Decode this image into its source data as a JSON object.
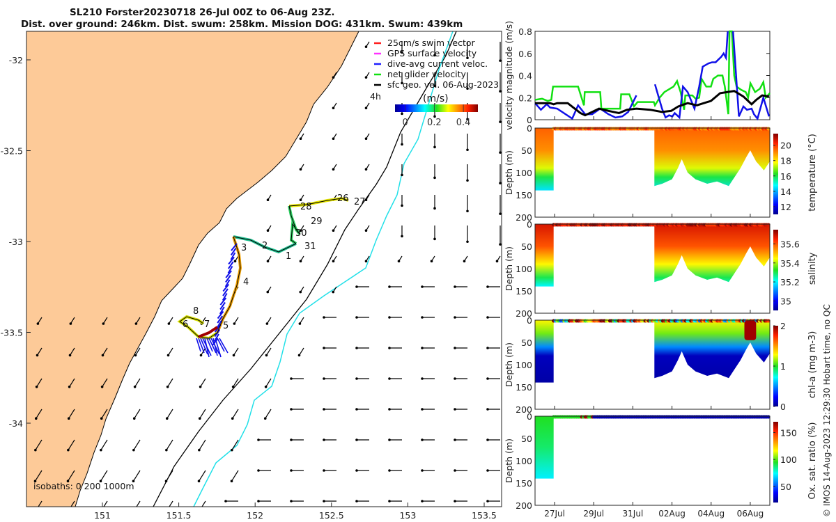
{
  "title": {
    "line1": "SL210 Forster20230718 26-Jul 00Z to 06-Aug 23Z.",
    "line2": "Dist. over ground: 246km. Dist. swum: 258km. Mission DOG: 431km. Swum: 439km"
  },
  "credit": "© IMOS 14-Aug-2023 12:29:30 Hobart time, no QC",
  "colors": {
    "land": "#fdca98",
    "isobath_200": "#000000",
    "isobath_1000": "#22e0e8",
    "green": "#11e011",
    "blue": "#1010e8",
    "black": "#000000"
  },
  "map": {
    "legend": [
      {
        "label": "25cm/s swim vector",
        "color": "#ff2020"
      },
      {
        "label": "GPS surface velocity",
        "color": "#ff30ff"
      },
      {
        "label": "dive-avg current veloc.",
        "color": "#2020ff"
      },
      {
        "label": "net glider velocity",
        "color": "#11e011"
      },
      {
        "label": "sfc geo. vel. 06-Aug-2023",
        "color": "#000000"
      }
    ],
    "interval_label": "4h",
    "colorbar": {
      "unit": "(m/s)",
      "ticks": [
        "0",
        "0.2",
        "0.4"
      ],
      "range": [
        -0.07,
        0.5
      ]
    },
    "lon_ticks": [
      "151",
      "151.5",
      "152",
      "152.5",
      "153",
      "153.5"
    ],
    "lat_ticks": [
      "-32",
      "-32.5",
      "-33",
      "-33.5",
      "-34"
    ],
    "isobaths_label": "isobaths: 0   200  1000m",
    "track_labels": [
      "26",
      "27",
      "28",
      "29",
      "30",
      "31",
      "1",
      "2",
      "3",
      "4",
      "5",
      "6",
      "8",
      "7"
    ]
  },
  "chart_data": [
    {
      "type": "line",
      "ylabel": "velocity magnitude (m/s)",
      "ylim": [
        0,
        0.8
      ],
      "yticks": [
        "0",
        "0.2",
        "0.4",
        "0.6",
        "0.8"
      ],
      "xlim_days_since_26Jul00Z": [
        0,
        12
      ],
      "series": [
        {
          "name": "net glider velocity",
          "color": "#11e011",
          "x": [
            0,
            0.36,
            0.65,
            0.83,
            0.92,
            2.2,
            2.5,
            2.54,
            3.33,
            3.39,
            4.35,
            4.4,
            4.82,
            5.06,
            5.24,
            6.07,
            6.13,
            6.37,
            6.61,
            7.08,
            7.26,
            7.44,
            7.62,
            7.68,
            8.04,
            8.21,
            8.39,
            8.51,
            8.75,
            8.99,
            9.11,
            9.35,
            9.58,
            9.7,
            9.88,
            9.94,
            10.06,
            10.18,
            10.3,
            10.54,
            10.77,
            10.89,
            11.01,
            11.25,
            11.49,
            11.67,
            11.79,
            12
          ],
          "y": [
            0.18,
            0.19,
            0.17,
            0.18,
            0.3,
            0.3,
            0.13,
            0.25,
            0.25,
            0.1,
            0.1,
            0.23,
            0.23,
            0.12,
            0.16,
            0.16,
            0.13,
            0.2,
            0.25,
            0.3,
            0.35,
            0.25,
            0.09,
            0.22,
            0.22,
            0.19,
            0.2,
            0.37,
            0.3,
            0.3,
            0.37,
            0.4,
            0.4,
            0.3,
            0.05,
            0.8,
            0.8,
            0.4,
            0.3,
            0.27,
            0.25,
            0.2,
            0.33,
            0.25,
            0.28,
            0.34,
            0.2,
            0.24
          ]
        },
        {
          "name": "dive-avg current veloc. (part 1)",
          "color": "#1010e8",
          "x": [
            0,
            0.3,
            0.6,
            0.77,
            1.13,
            1.9,
            2.2,
            2.56,
            2.92,
            3.33,
            3.75,
            4.11,
            4.46,
            4.76,
            5.18
          ],
          "y": [
            0.15,
            0.09,
            0.14,
            0.11,
            0.1,
            0.01,
            0.13,
            0.05,
            0.05,
            0.1,
            0.05,
            0.02,
            0.03,
            0.07,
            0.22
          ]
        },
        {
          "name": "dive-avg current veloc. (part 2)",
          "color": "#1010e8",
          "x": [
            6.13,
            6.49,
            6.67,
            6.85,
            7.02,
            7.14,
            7.38,
            7.56,
            7.8,
            8.15,
            8.39,
            8.57,
            8.87,
            9.05,
            9.23,
            9.52,
            9.64,
            9.76,
            9.85
          ],
          "y": [
            0.32,
            0.1,
            0.02,
            0.04,
            0.03,
            0.06,
            0.02,
            0.3,
            0.25,
            0.1,
            0.3,
            0.48,
            0.51,
            0.52,
            0.52,
            0.57,
            0.6,
            0.56,
            0.8
          ]
        },
        {
          "name": "dive-avg current veloc. (part 3)",
          "color": "#1010e8",
          "x": [
            10.12,
            10.42,
            10.65,
            10.83,
            11.07,
            11.19,
            11.37,
            11.67,
            11.96
          ],
          "y": [
            0.8,
            0.03,
            0.12,
            0.09,
            0.1,
            0.05,
            0.01,
            0.2,
            0.03
          ]
        },
        {
          "name": "sfc geo. vel.",
          "color": "#000000",
          "x": [
            0,
            0.77,
            0.95,
            1.13,
            1.67,
            1.96,
            2.32,
            2.56,
            2.92,
            3.27,
            3.75,
            4.29,
            4.7,
            5.18,
            5.89,
            6.49,
            6.96,
            7.32,
            7.8,
            8.27,
            8.99,
            9.46,
            10.18,
            10.65,
            11.07,
            11.31,
            11.61,
            11.96
          ],
          "y": [
            0.15,
            0.15,
            0.14,
            0.15,
            0.15,
            0.11,
            0.06,
            0.04,
            0.07,
            0.1,
            0.08,
            0.06,
            0.09,
            0.1,
            0.09,
            0.07,
            0.08,
            0.12,
            0.15,
            0.13,
            0.17,
            0.24,
            0.26,
            0.21,
            0.14,
            0.18,
            0.22,
            0.21
          ]
        }
      ]
    },
    {
      "type": "heatmap",
      "ylabel": "Depth (m)",
      "clabel": "temperature (°C)",
      "ylim": [
        0,
        200
      ],
      "yticks": [
        "0",
        "50",
        "100",
        "150",
        "200"
      ],
      "cticks": [
        "12",
        "14",
        "16",
        "18",
        "20"
      ],
      "crange": [
        11,
        21.5
      ],
      "profile_A": {
        "x": [
          0,
          0.95
        ],
        "max_depth": 140
      },
      "profile_B": {
        "x": [
          6.1,
          6.5,
          7.0,
          7.3,
          7.5,
          7.8,
          8.2,
          8.8,
          9.3,
          9.6,
          9.9,
          10.2,
          10.5,
          10.8,
          11.0,
          11.3,
          11.7,
          12
        ],
        "max_depth": [
          130,
          125,
          115,
          90,
          70,
          100,
          115,
          125,
          120,
          125,
          130,
          110,
          90,
          65,
          50,
          75,
          95,
          75
        ]
      },
      "depth_values": {
        "depth": [
          0,
          50,
          90,
          110,
          140
        ],
        "values": [
          19.5,
          19,
          17.5,
          16,
          14.5
        ]
      }
    },
    {
      "type": "heatmap",
      "ylabel": "Depth (m)",
      "clabel": "salinity",
      "ylim": [
        0,
        200
      ],
      "yticks": [
        "0",
        "50",
        "100",
        "150",
        "200"
      ],
      "cticks": [
        "35",
        "35.2",
        "35.4",
        "35.6"
      ],
      "crange": [
        34.9,
        35.75
      ],
      "depth_values": {
        "depth": [
          0,
          50,
          90,
          120,
          140
        ],
        "values": [
          35.68,
          35.6,
          35.45,
          35.3,
          35.2
        ]
      }
    },
    {
      "type": "heatmap",
      "ylabel": "Depth (m)",
      "clabel": "chl-a (mg m-3)",
      "ylim": [
        0,
        200
      ],
      "yticks": [
        "0",
        "50",
        "100",
        "150",
        "200"
      ],
      "cticks": [
        "0",
        "1",
        "2"
      ],
      "crange": [
        0,
        2
      ],
      "depth_values": {
        "depth": [
          0,
          30,
          60,
          80,
          140
        ],
        "values": [
          1.3,
          1.1,
          0.5,
          0.1,
          0.05
        ]
      }
    },
    {
      "type": "heatmap",
      "ylabel": "Depth (m)",
      "clabel": "Ox. sat. ratio (%)",
      "ylim": [
        0,
        200
      ],
      "yticks": [
        "0",
        "50",
        "100",
        "150",
        "200"
      ],
      "cticks": [
        "50",
        "100",
        "150"
      ],
      "crange": [
        20,
        170
      ],
      "xticks": [
        "27Jul",
        "29Jul",
        "31Jul",
        "02Aug",
        "04Aug",
        "06Aug"
      ],
      "xtick_days": [
        1,
        3,
        5,
        7,
        9,
        11
      ],
      "depth_values": {
        "depth": [
          0,
          70,
          140
        ],
        "values": [
          95,
          88,
          72
        ]
      }
    }
  ]
}
